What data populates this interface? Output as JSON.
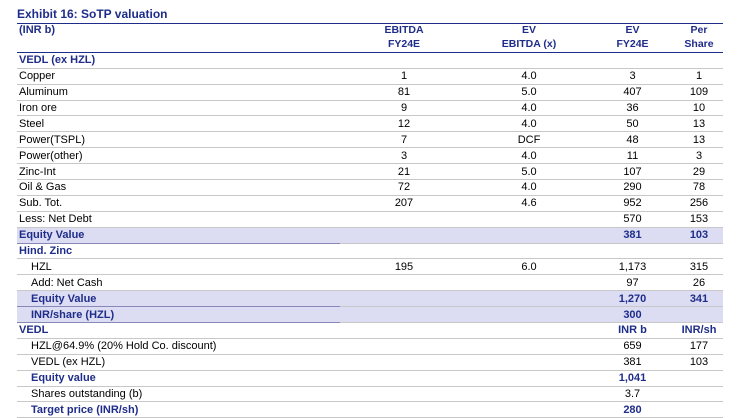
{
  "title": "Exhibit 16: SoTP valuation",
  "header": {
    "unit": "(INR b)",
    "col1_line1": "EBITDA",
    "col1_line2": "FY24E",
    "col2_line1": "EV",
    "col2_line2": "EBITDA (x)",
    "col3_line1": "EV",
    "col3_line2": "FY24E",
    "col4_line1": "Per",
    "col4_line2": "Share"
  },
  "rows": [
    {
      "label": "VEDL (ex HZL)",
      "c1": "",
      "c2": "",
      "c3": "",
      "c4": "",
      "style": "sec"
    },
    {
      "label": "Copper",
      "c1": "1",
      "c2": "4.0",
      "c3": "3",
      "c4": "1"
    },
    {
      "label": "Aluminum",
      "c1": "81",
      "c2": "5.0",
      "c3": "407",
      "c4": "109"
    },
    {
      "label": "Iron ore",
      "c1": "9",
      "c2": "4.0",
      "c3": "36",
      "c4": "10"
    },
    {
      "label": "Steel",
      "c1": "12",
      "c2": "4.0",
      "c3": "50",
      "c4": "13"
    },
    {
      "label": "Power(TSPL)",
      "c1": "7",
      "c2": "DCF",
      "c3": "48",
      "c4": "13"
    },
    {
      "label": "Power(other)",
      "c1": "3",
      "c2": "4.0",
      "c3": "11",
      "c4": "3"
    },
    {
      "label": "Zinc-Int",
      "c1": "21",
      "c2": "5.0",
      "c3": "107",
      "c4": "29"
    },
    {
      "label": "Oil & Gas",
      "c1": "72",
      "c2": "4.0",
      "c3": "290",
      "c4": "78"
    },
    {
      "label": "Sub. Tot.",
      "c1": "207",
      "c2": "4.6",
      "c3": "952",
      "c4": "256"
    },
    {
      "label": "Less: Net Debt",
      "c1": "",
      "c2": "",
      "c3": "570",
      "c4": "153"
    },
    {
      "label": "Equity Value",
      "c1": "",
      "c2": "",
      "c3": "381",
      "c4": "103",
      "style": "bold hl"
    },
    {
      "label": "Hind. Zinc",
      "c1": "",
      "c2": "",
      "c3": "",
      "c4": "",
      "style": "sec"
    },
    {
      "label": "HZL",
      "c1": "195",
      "c2": "6.0",
      "c3": "1,173",
      "c4": "315",
      "indent": true
    },
    {
      "label": "Add: Net Cash",
      "c1": "",
      "c2": "",
      "c3": "97",
      "c4": "26",
      "indent": true
    },
    {
      "label": "Equity Value",
      "c1": "",
      "c2": "",
      "c3": "1,270",
      "c4": "341",
      "style": "bold hl",
      "indent": true
    },
    {
      "label": "INR/share (HZL)",
      "c1": "",
      "c2": "",
      "c3": "300",
      "c4": "",
      "style": "bold hl",
      "indent": true
    },
    {
      "label": "VEDL",
      "c1": "",
      "c2": "",
      "c3": "INR b",
      "c4": "INR/sh",
      "style": "sec"
    },
    {
      "label": "HZL@64.9% (20% Hold Co. discount)",
      "c1": "",
      "c2": "",
      "c3": "659",
      "c4": "177",
      "indent": true
    },
    {
      "label": "VEDL (ex HZL)",
      "c1": "",
      "c2": "",
      "c3": "381",
      "c4": "103",
      "indent": true
    },
    {
      "label": "Equity value",
      "c1": "",
      "c2": "",
      "c3": "1,041",
      "c4": "",
      "style": "bold",
      "indent": true
    },
    {
      "label": "Shares outstanding (b)",
      "c1": "",
      "c2": "",
      "c3": "3.7",
      "c4": "",
      "indent": true
    },
    {
      "label": "Target price (INR/sh)",
      "c1": "",
      "c2": "",
      "c3": "280",
      "c4": "",
      "style": "bold",
      "indent": true
    }
  ]
}
